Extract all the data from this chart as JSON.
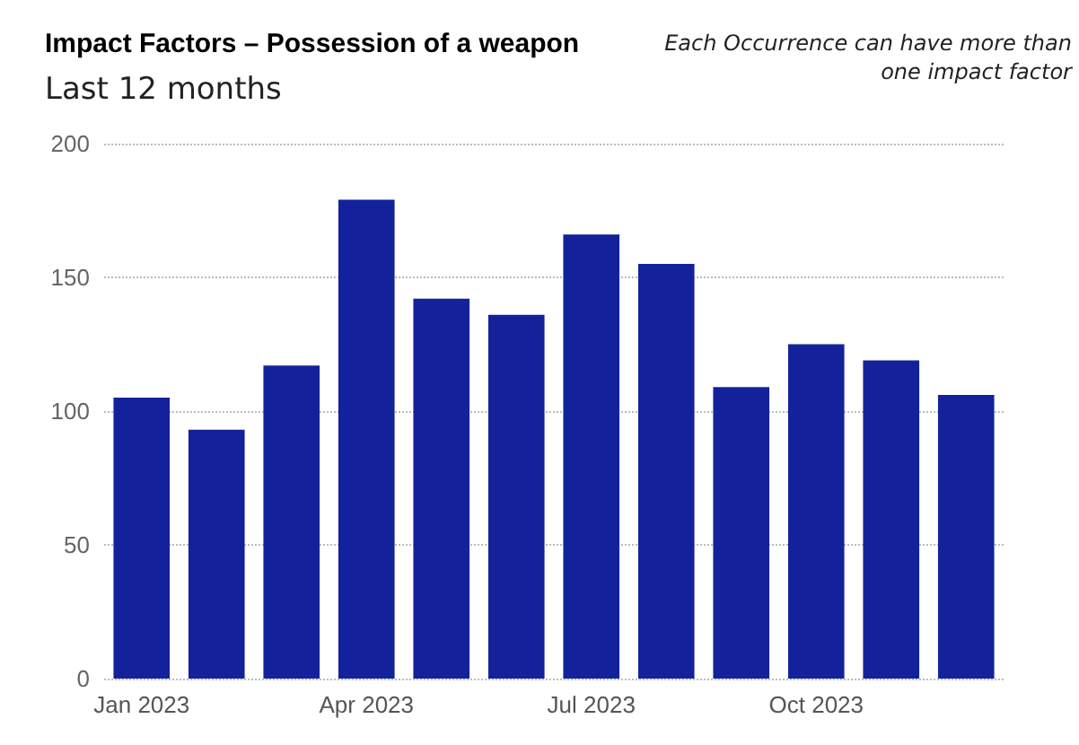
{
  "chart_data": {
    "type": "bar",
    "title": "Impact Factors – Possession of a weapon",
    "subtitle": "Last 12 months",
    "annotations": [
      "Each Occurrence can have more than one impact factor"
    ],
    "categories": [
      "Jan 2023",
      null,
      null,
      "Apr 2023",
      null,
      null,
      "Jul 2023",
      null,
      null,
      "Oct 2023",
      null,
      null
    ],
    "values": [
      105,
      93,
      117,
      179,
      142,
      136,
      166,
      155,
      109,
      125,
      119,
      106
    ],
    "color": "#13229a",
    "ylim": [
      0,
      200
    ],
    "yticks": [
      0,
      50,
      100,
      150,
      200
    ],
    "grid": "y"
  }
}
